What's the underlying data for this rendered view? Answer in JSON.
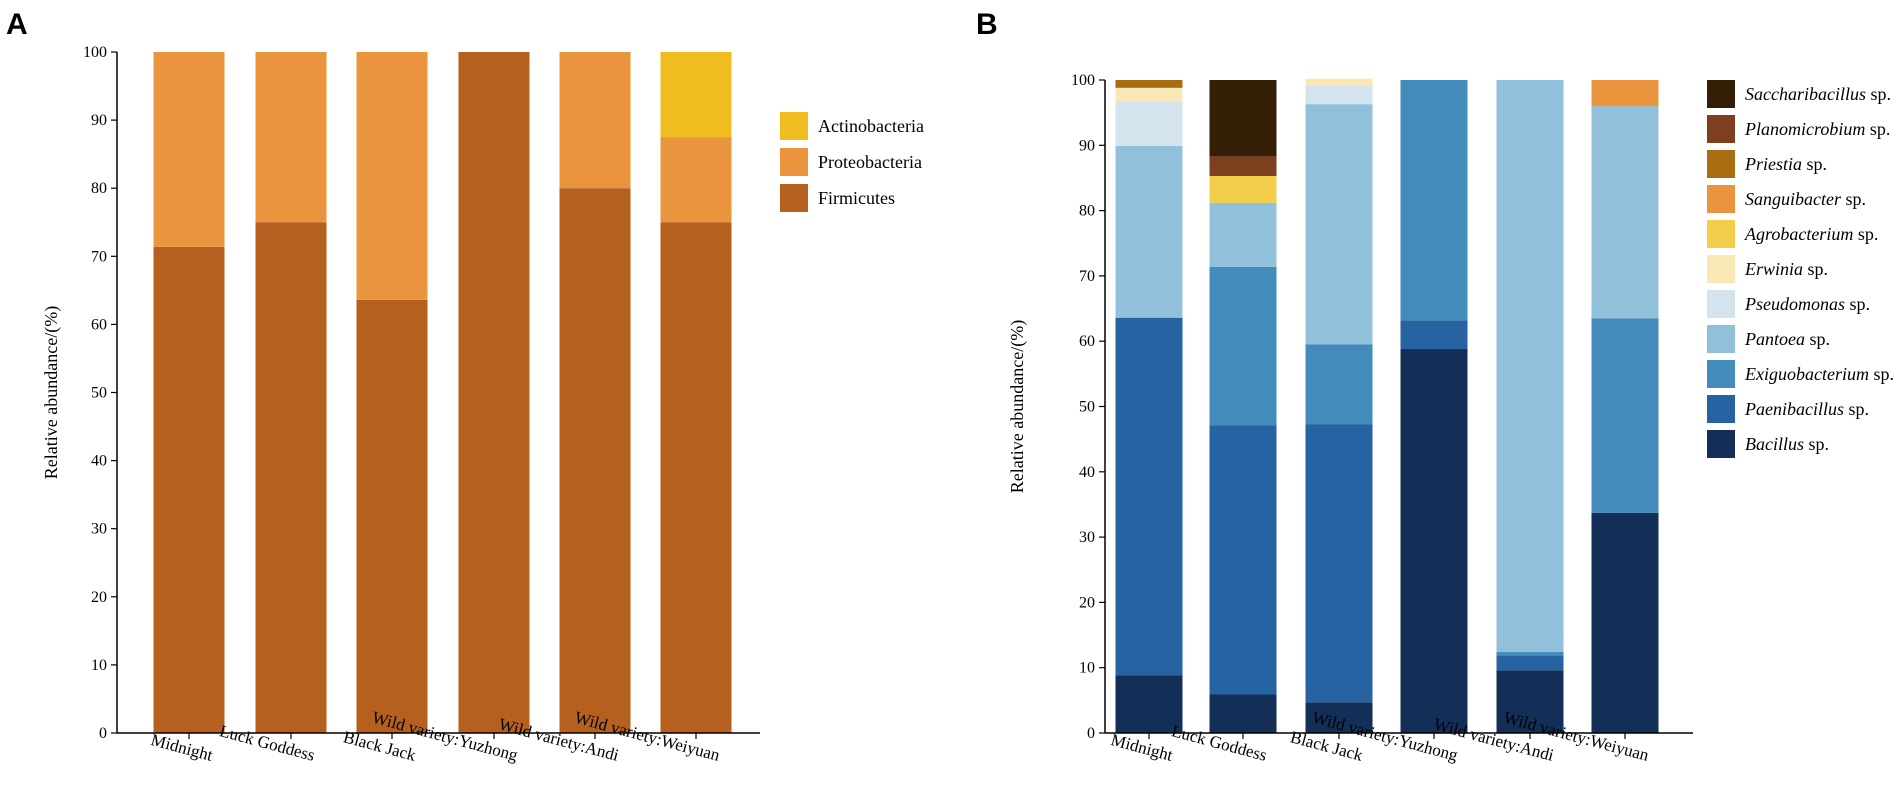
{
  "chart_data": [
    {
      "panel": "A",
      "type": "bar",
      "stacked": true,
      "title": "",
      "xlabel": "",
      "ylabel": "Relative abundance/(%)",
      "ylim": [
        0,
        100
      ],
      "yticks": [
        0,
        10,
        20,
        30,
        40,
        50,
        60,
        70,
        80,
        90,
        100
      ],
      "grid": false,
      "legend_position": "right",
      "categories": [
        "Midnight",
        "Luck Goddess",
        "Black Jack",
        "Wild variety:Yuzhong",
        "Wild variety:Andi",
        "Wild variety:Weiyuan"
      ],
      "series": [
        {
          "name": "Firmicutes",
          "color": "#B5601F",
          "values": [
            71.4,
            75.0,
            63.6,
            100.0,
            80.0,
            75.0
          ]
        },
        {
          "name": "Proteobacteria",
          "color": "#EA953D",
          "values": [
            28.6,
            25.0,
            36.4,
            0.0,
            20.0,
            12.5
          ]
        },
        {
          "name": "Actinobacteria",
          "color": "#EFBD20",
          "values": [
            0.0,
            0.0,
            0.0,
            0.0,
            0.0,
            12.5
          ]
        }
      ],
      "legend": [
        {
          "name": "Actinobacteria",
          "color": "#EFBD20"
        },
        {
          "name": "Proteobacteria",
          "color": "#EA953D"
        },
        {
          "name": "Firmicutes",
          "color": "#B5601F"
        }
      ]
    },
    {
      "panel": "B",
      "type": "bar",
      "stacked": true,
      "title": "",
      "xlabel": "",
      "ylabel": "Relative abundance/(%)",
      "ylim": [
        0,
        100
      ],
      "yticks": [
        0,
        10,
        20,
        30,
        40,
        50,
        60,
        70,
        80,
        90,
        100
      ],
      "grid": false,
      "legend_position": "right",
      "categories": [
        "Midnight",
        "Luck Goddess",
        "Black Jack",
        "Wild variety:Yuzhong",
        "Wild variety:Andi",
        "Wild variety:Weiyuan"
      ],
      "series": [
        {
          "name": "Bacillus",
          "suffix": " sp.",
          "color": "#142F57",
          "values": [
            8.8,
            5.9,
            4.7,
            58.8,
            9.6,
            33.7
          ]
        },
        {
          "name": "Paenibacillus",
          "suffix": " sp.",
          "color": "#2563A3",
          "values": [
            54.8,
            41.2,
            42.6,
            4.4,
            2.3,
            0.0
          ]
        },
        {
          "name": "Exiguobacterium",
          "suffix": " sp.",
          "color": "#438BBB",
          "values": [
            0.0,
            24.3,
            12.2,
            36.8,
            0.5,
            29.8
          ]
        },
        {
          "name": "Pantoea",
          "suffix": " sp.",
          "color": "#91C0DA",
          "values": [
            26.3,
            9.8,
            36.8,
            0.0,
            87.6,
            32.5
          ]
        },
        {
          "name": "Pseudomonas",
          "suffix": " sp.",
          "color": "#D3E4EF",
          "values": [
            6.8,
            0.0,
            2.9,
            0.0,
            0.0,
            0.0
          ]
        },
        {
          "name": "Erwinia",
          "suffix": " sp.",
          "color": "#F9E7B5",
          "values": [
            2.1,
            0.0,
            1.0,
            0.0,
            0.0,
            0.0
          ]
        },
        {
          "name": "Agrobacterium",
          "suffix": " sp.",
          "color": "#F3CE4A",
          "values": [
            0.0,
            4.1,
            0.0,
            0.0,
            0.0,
            0.0
          ]
        },
        {
          "name": "Sanguibacter",
          "suffix": " sp.",
          "color": "#EA953D",
          "values": [
            0.0,
            0.0,
            0.0,
            0.0,
            0.0,
            4.0
          ]
        },
        {
          "name": "Priestia",
          "suffix": " sp.",
          "color": "#A96E12",
          "values": [
            1.2,
            0.0,
            0.0,
            0.0,
            0.0,
            0.0
          ]
        },
        {
          "name": "Planomicrobium",
          "suffix": " sp.",
          "color": "#7E3F1E",
          "values": [
            0.0,
            3.0,
            0.0,
            0.0,
            0.0,
            0.0
          ]
        },
        {
          "name": "Saccharibacillus",
          "suffix": " sp.",
          "color": "#351E06",
          "values": [
            0.0,
            11.7,
            0.0,
            0.0,
            0.0,
            0.0
          ]
        }
      ],
      "legend": [
        {
          "name": "Saccharibacillus",
          "suffix": " sp.",
          "color": "#351E06"
        },
        {
          "name": "Planomicrobium",
          "suffix": " sp.",
          "color": "#7E3F1E"
        },
        {
          "name": "Priestia",
          "suffix": " sp.",
          "color": "#A96E12"
        },
        {
          "name": "Sanguibacter",
          "suffix": " sp.",
          "color": "#EA953D"
        },
        {
          "name": "Agrobacterium",
          "suffix": " sp.",
          "color": "#F3CE4A"
        },
        {
          "name": "Erwinia",
          "suffix": " sp.",
          "color": "#F9E7B5"
        },
        {
          "name": "Pseudomonas",
          "suffix": " sp.",
          "color": "#D3E4EF"
        },
        {
          "name": "Pantoea",
          "suffix": " sp.",
          "color": "#91C0DA"
        },
        {
          "name": "Exiguobacterium",
          "suffix": " sp.",
          "color": "#438BBB"
        },
        {
          "name": "Paenibacillus",
          "suffix": " sp.",
          "color": "#2563A3"
        },
        {
          "name": "Bacillus",
          "suffix": " sp.",
          "color": "#142F57"
        }
      ]
    }
  ]
}
